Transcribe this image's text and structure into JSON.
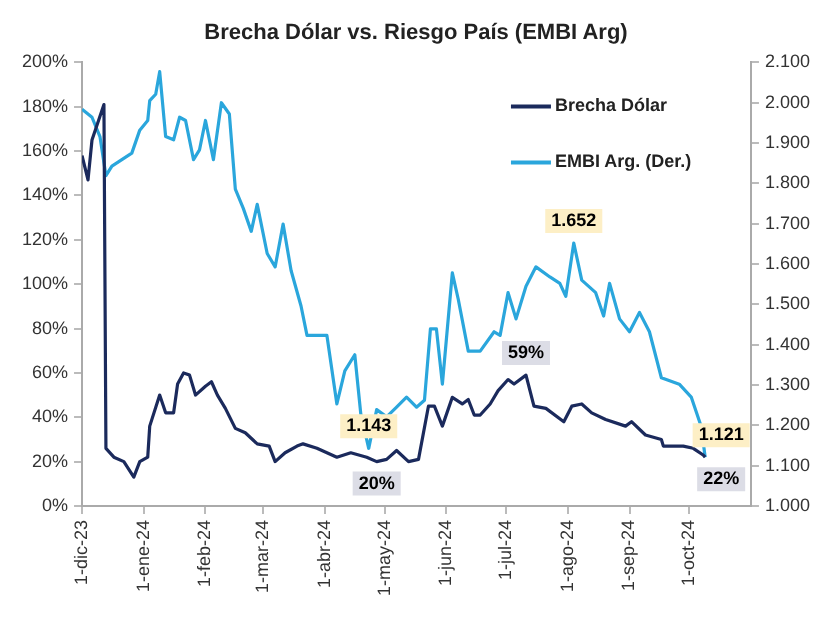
{
  "chart_data": {
    "type": "line",
    "title": "Brecha Dólar vs. Riesgo País (EMBI Arg)",
    "xlim": [
      "2023-12-01",
      "2024-11-01"
    ],
    "xticks": [
      {
        "value": "2023-12-01",
        "label": "1-dic-23"
      },
      {
        "value": "2024-01-01",
        "label": "1-ene-24"
      },
      {
        "value": "2024-02-01",
        "label": "1-feb-24"
      },
      {
        "value": "2024-03-01",
        "label": "1-mar-24"
      },
      {
        "value": "2024-04-01",
        "label": "1-abr-24"
      },
      {
        "value": "2024-05-01",
        "label": "1-may-24"
      },
      {
        "value": "2024-06-01",
        "label": "1-jun-24"
      },
      {
        "value": "2024-07-01",
        "label": "1-jul-24"
      },
      {
        "value": "2024-08-01",
        "label": "1-ago-24"
      },
      {
        "value": "2024-09-01",
        "label": "1-sep-24"
      },
      {
        "value": "2024-10-01",
        "label": "1-oct-24"
      }
    ],
    "ylim": [
      0,
      200
    ],
    "yticks": [
      {
        "value": 0,
        "label": "0%"
      },
      {
        "value": 20,
        "label": "20%"
      },
      {
        "value": 40,
        "label": "40%"
      },
      {
        "value": 60,
        "label": "60%"
      },
      {
        "value": 80,
        "label": "80%"
      },
      {
        "value": 100,
        "label": "100%"
      },
      {
        "value": 120,
        "label": "120%"
      },
      {
        "value": 140,
        "label": "140%"
      },
      {
        "value": 160,
        "label": "160%"
      },
      {
        "value": 180,
        "label": "180%"
      },
      {
        "value": 200,
        "label": "200%"
      }
    ],
    "y2lim": [
      1000,
      2100
    ],
    "y2ticks": [
      {
        "value": 1000,
        "label": "1.000"
      },
      {
        "value": 1100,
        "label": "1.100"
      },
      {
        "value": 1200,
        "label": "1.200"
      },
      {
        "value": 1300,
        "label": "1.300"
      },
      {
        "value": 1400,
        "label": "1.400"
      },
      {
        "value": 1500,
        "label": "1.500"
      },
      {
        "value": 1600,
        "label": "1.600"
      },
      {
        "value": 1700,
        "label": "1.700"
      },
      {
        "value": 1800,
        "label": "1.800"
      },
      {
        "value": 1900,
        "label": "1.900"
      },
      {
        "value": 2000,
        "label": "2.000"
      },
      {
        "value": 2100,
        "label": "2.100"
      }
    ],
    "grid": false,
    "legend": "top right",
    "marker": "none",
    "line_style": "solid",
    "series": [
      {
        "name": "Brecha Dólar",
        "color": "#1b2a5c",
        "x": [
          "2023-12-01",
          "2023-12-04",
          "2023-12-06",
          "2023-12-12",
          "2023-12-13",
          "2023-12-17",
          "2023-12-22",
          "2023-12-27",
          "2023-12-30",
          "2024-01-03",
          "2024-01-04",
          "2024-01-09",
          "2024-01-12",
          "2024-01-16",
          "2024-01-18",
          "2024-01-21",
          "2024-01-24",
          "2024-01-27",
          "2024-02-01",
          "2024-02-04",
          "2024-02-07",
          "2024-02-11",
          "2024-02-16",
          "2024-02-21",
          "2024-02-27",
          "2024-03-04",
          "2024-03-07",
          "2024-03-12",
          "2024-03-18",
          "2024-03-21",
          "2024-03-28",
          "2024-04-07",
          "2024-04-14",
          "2024-04-22",
          "2024-04-27",
          "2024-05-02",
          "2024-05-07",
          "2024-05-13",
          "2024-05-18",
          "2024-05-23",
          "2024-05-26",
          "2024-05-30",
          "2024-06-04",
          "2024-06-09",
          "2024-06-12",
          "2024-06-15",
          "2024-06-18",
          "2024-06-23",
          "2024-06-27",
          "2024-07-02",
          "2024-07-05",
          "2024-07-11",
          "2024-07-13",
          "2024-07-15",
          "2024-07-21",
          "2024-07-30",
          "2024-08-03",
          "2024-08-08",
          "2024-08-13",
          "2024-08-20",
          "2024-08-30",
          "2024-09-02",
          "2024-09-09",
          "2024-09-17",
          "2024-09-18",
          "2024-09-28",
          "2024-10-03",
          "2024-10-08",
          "2024-10-09"
        ],
        "values": [
          158,
          147,
          165,
          181,
          26,
          22,
          20,
          13,
          20,
          22,
          36,
          50,
          42,
          42,
          55,
          60,
          59,
          50,
          54,
          56,
          50,
          44,
          35,
          33,
          28,
          27,
          20,
          24,
          27,
          28,
          26,
          22,
          24,
          22,
          20,
          21,
          25,
          20,
          21,
          45,
          45,
          36,
          49,
          46,
          48,
          41,
          41,
          46,
          52,
          57,
          55,
          59,
          52,
          45,
          44,
          38,
          45,
          46,
          42,
          39,
          36,
          38,
          32,
          30,
          27,
          27,
          26,
          23,
          22
        ],
        "value_labels": [
          null,
          null,
          null,
          null,
          null,
          null,
          null,
          null,
          null,
          null,
          null,
          null,
          null,
          null,
          null,
          null,
          null,
          null,
          null,
          null,
          null,
          null,
          null,
          null,
          null,
          null,
          null,
          null,
          null,
          null,
          null,
          null,
          null,
          null,
          "20%",
          null,
          null,
          null,
          null,
          null,
          null,
          null,
          null,
          null,
          null,
          null,
          null,
          null,
          null,
          null,
          null,
          "59%",
          null,
          null,
          null,
          null,
          null,
          null,
          null,
          null,
          null,
          null,
          null,
          null,
          null,
          null,
          null,
          null,
          "22%"
        ]
      },
      {
        "name": "EMBI Arg. (Der.)",
        "color": "#2aa6dc",
        "axis": "y2",
        "x": [
          "2023-12-01",
          "2023-12-06",
          "2023-12-10",
          "2023-12-13",
          "2023-12-16",
          "2023-12-21",
          "2023-12-26",
          "2023-12-30",
          "2024-01-03",
          "2024-01-04",
          "2024-01-07",
          "2024-01-09",
          "2024-01-12",
          "2024-01-16",
          "2024-01-19",
          "2024-01-22",
          "2024-01-26",
          "2024-01-29",
          "2024-02-01",
          "2024-02-05",
          "2024-02-09",
          "2024-02-13",
          "2024-02-16",
          "2024-02-20",
          "2024-02-24",
          "2024-02-27",
          "2024-03-03",
          "2024-03-07",
          "2024-03-11",
          "2024-03-15",
          "2024-03-20",
          "2024-03-23",
          "2024-04-02",
          "2024-04-07",
          "2024-04-11",
          "2024-04-16",
          "2024-04-19",
          "2024-04-23",
          "2024-04-27",
          "2024-05-02",
          "2024-05-07",
          "2024-05-12",
          "2024-05-17",
          "2024-05-21",
          "2024-05-24",
          "2024-05-27",
          "2024-05-30",
          "2024-06-04",
          "2024-06-07",
          "2024-06-12",
          "2024-06-18",
          "2024-06-25",
          "2024-06-28",
          "2024-07-02",
          "2024-07-06",
          "2024-07-11",
          "2024-07-16",
          "2024-07-23",
          "2024-07-28",
          "2024-07-31",
          "2024-08-04",
          "2024-08-08",
          "2024-08-15",
          "2024-08-19",
          "2024-08-22",
          "2024-08-27",
          "2024-09-01",
          "2024-09-06",
          "2024-09-11",
          "2024-09-17",
          "2024-09-26",
          "2024-10-02",
          "2024-10-07",
          "2024-10-09"
        ],
        "values": [
          1984,
          1964,
          1916,
          1819,
          1843,
          1859,
          1875,
          1932,
          1956,
          2005,
          2021,
          2077,
          1916,
          1908,
          1964,
          1956,
          1859,
          1883,
          1956,
          1859,
          2000,
          1972,
          1786,
          1738,
          1681,
          1748,
          1626,
          1593,
          1699,
          1584,
          1496,
          1423,
          1423,
          1253,
          1335,
          1375,
          1229,
          1143,
          1239,
          1221,
          1245,
          1270,
          1245,
          1262,
          1439,
          1439,
          1302,
          1578,
          1512,
          1384,
          1384,
          1432,
          1423,
          1529,
          1464,
          1545,
          1593,
          1568,
          1552,
          1520,
          1652,
          1560,
          1529,
          1471,
          1552,
          1464,
          1432,
          1480,
          1432,
          1318,
          1302,
          1270,
          1197,
          1121
        ],
        "value_labels": [
          null,
          null,
          null,
          null,
          null,
          null,
          null,
          null,
          null,
          null,
          null,
          null,
          null,
          null,
          null,
          null,
          null,
          null,
          null,
          null,
          null,
          null,
          null,
          null,
          null,
          null,
          null,
          null,
          null,
          null,
          null,
          null,
          null,
          null,
          null,
          null,
          null,
          "1.143",
          null,
          null,
          null,
          null,
          null,
          null,
          null,
          null,
          null,
          null,
          null,
          null,
          null,
          null,
          null,
          null,
          null,
          null,
          null,
          null,
          null,
          null,
          "1.652",
          null,
          null,
          null,
          null,
          null,
          null,
          null,
          null,
          null,
          null,
          null,
          null,
          "1.121"
        ]
      }
    ]
  }
}
